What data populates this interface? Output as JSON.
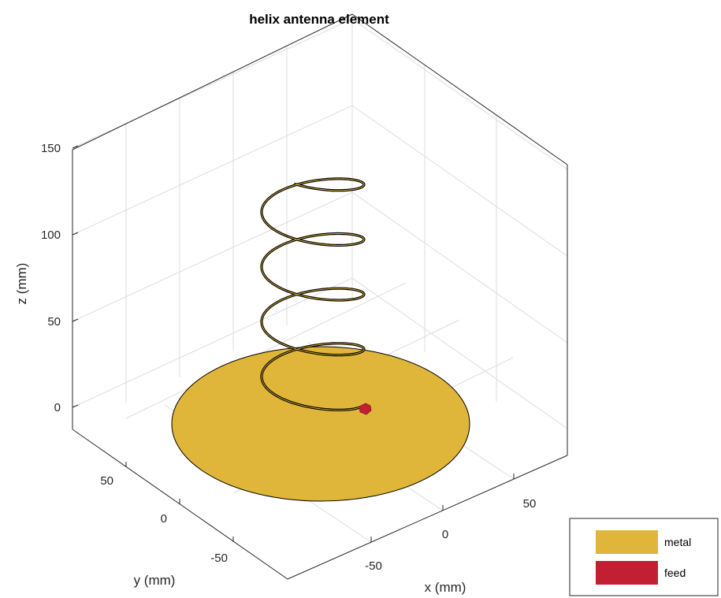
{
  "title": "helix antenna element",
  "axes": {
    "x_label": "x (mm)",
    "y_label": "y (mm)",
    "z_label": "z (mm)",
    "x_ticks": [
      "-50",
      "0",
      "50"
    ],
    "y_ticks": [
      "-50",
      "0",
      "50"
    ],
    "z_ticks": [
      "0",
      "50",
      "100",
      "150"
    ]
  },
  "legend": {
    "placement": "bottom-right",
    "items": [
      {
        "label": "metal",
        "color": "#DFB639"
      },
      {
        "label": "feed",
        "color": "#C21F33"
      }
    ]
  },
  "colors": {
    "metal": "#DFB639",
    "feed": "#C21F33",
    "helix_wire": "#000000",
    "box": "#262626",
    "grid": "#DCDCDC"
  },
  "chart_data": {
    "type": "3d-structure",
    "title": "helix antenna element",
    "xlabel": "x (mm)",
    "ylabel": "y (mm)",
    "zlabel": "z (mm)",
    "xlim": [
      -90,
      90
    ],
    "ylim": [
      -90,
      90
    ],
    "zlim": [
      -10,
      160
    ],
    "grid": true,
    "ground_plane": {
      "shape": "disc",
      "radius_mm": 75,
      "z_mm": 0,
      "material": "metal"
    },
    "helix": {
      "turns": 4.25,
      "radius_mm": 22,
      "z_start_mm": 0,
      "z_end_mm": 140,
      "material": "metal"
    },
    "feed": {
      "x_mm": 24,
      "y_mm": -4,
      "z_mm": 0
    }
  }
}
